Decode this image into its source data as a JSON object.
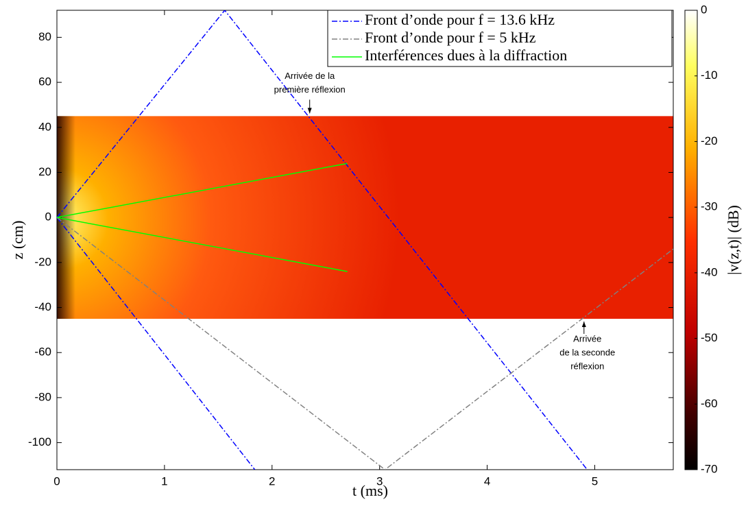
{
  "chart_data": {
    "type": "line",
    "xlabel": "t (ms)",
    "ylabel": "z (cm)",
    "xlim": [
      0,
      5.73
    ],
    "ylim": [
      -112,
      92
    ],
    "xticks": [
      0,
      1,
      2,
      3,
      4,
      5
    ],
    "yticks": [
      -100,
      -80,
      -60,
      -40,
      -20,
      0,
      20,
      40,
      60,
      80
    ],
    "heatmap": {
      "xlim": [
        0,
        5.73
      ],
      "ylim": [
        -45,
        45
      ]
    },
    "colorbar": {
      "label": "|v(z,t)| (dB)",
      "lim": [
        -70,
        0
      ],
      "ticks": [
        0,
        -10,
        -20,
        -30,
        -40,
        -50,
        -60,
        -70
      ]
    },
    "series": [
      {
        "name": "Front d’onde pour f = 13.6 kHz",
        "color": "#0000ff",
        "dash": "dashdot",
        "x": [
          0,
          1.56,
          4.93,
          null,
          0,
          1.84
        ],
        "values": [
          0,
          92,
          -112,
          null,
          0,
          -112
        ]
      },
      {
        "name": "Front d’onde pour f = 5 kHz",
        "color": "#808080",
        "dash": "dashdot",
        "x": [
          0,
          3.05,
          5.73
        ],
        "values": [
          0,
          -112,
          -14
        ]
      },
      {
        "name": "Interférences dues à la diffraction",
        "color": "#00ff00",
        "dash": "solid",
        "x": [
          0,
          2.7,
          null,
          0,
          2.7
        ],
        "values": [
          0,
          24,
          null,
          0,
          -24
        ]
      }
    ],
    "annotations": [
      {
        "lines": [
          "Arrivée de la",
          "première réflexion"
        ],
        "x": 2.35,
        "y": 45
      },
      {
        "lines": [
          "Arrivée",
          "de la seconde",
          "réflexion"
        ],
        "x": 4.9,
        "y": -45
      }
    ]
  }
}
